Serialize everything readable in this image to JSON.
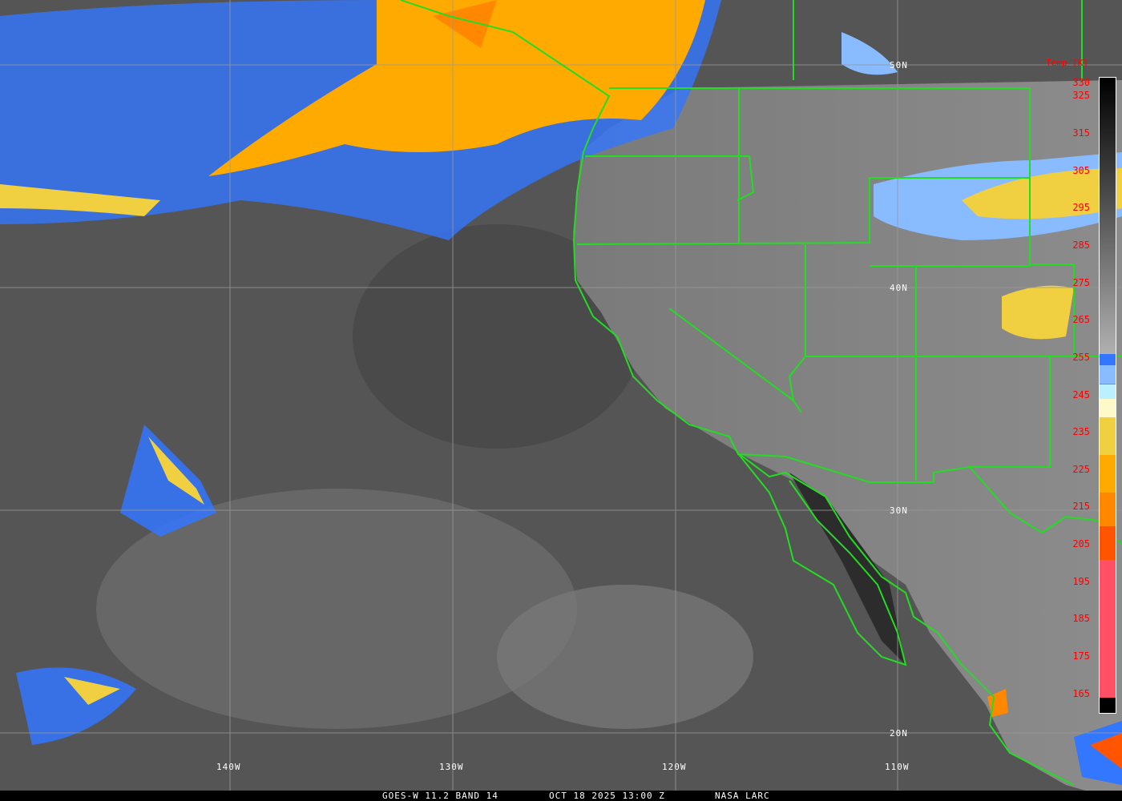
{
  "caption": {
    "product": "GOES-W 11.2 BAND 14",
    "datetime": "OCT 18 2025 13:00 Z",
    "source": "NASA LARC"
  },
  "grid": {
    "longitudes": [
      "140W",
      "130W",
      "120W",
      "110W"
    ],
    "latitudes": [
      "50N",
      "40N",
      "30N",
      "20N"
    ]
  },
  "colorbar": {
    "title": "Temp [K]",
    "ticks": [
      "330",
      "325",
      "315",
      "305",
      "295",
      "285",
      "275",
      "265",
      "255",
      "245",
      "235",
      "225",
      "215",
      "205",
      "195",
      "185",
      "175",
      "165"
    ],
    "segments": [
      {
        "from": 330,
        "to": 256,
        "color": "gradient #000000-#b0b0b0"
      },
      {
        "from": 256,
        "to": 253,
        "color": "#3377ff"
      },
      {
        "from": 253,
        "to": 248,
        "color": "#88bbff"
      },
      {
        "from": 248,
        "to": 244,
        "color": "#bbf0ff"
      },
      {
        "from": 244,
        "to": 239,
        "color": "#fff8c8"
      },
      {
        "from": 239,
        "to": 229,
        "color": "#f0d040"
      },
      {
        "from": 229,
        "to": 219,
        "color": "#ffaa00"
      },
      {
        "from": 219,
        "to": 210,
        "color": "#ff8800"
      },
      {
        "from": 210,
        "to": 201,
        "color": "#ff5500"
      },
      {
        "from": 201,
        "to": 164,
        "color": "#ff5066"
      },
      {
        "from": 164,
        "to": 160,
        "color": "#000000"
      }
    ]
  },
  "colors": {
    "borders": "#22dd22",
    "grid": "#999999",
    "labels": "#ffffff",
    "ticks": "#ff0000"
  }
}
